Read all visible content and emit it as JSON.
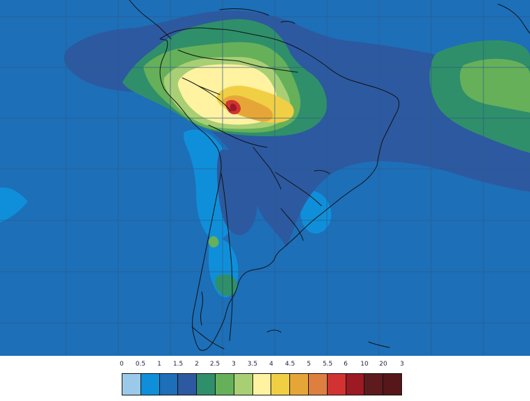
{
  "map": {
    "background_color": "#1d6fb8",
    "colors": {
      "ocean_deep": "#1d6fb8",
      "ocean_light": "#0f8fd9",
      "navy": "#2d59a0",
      "teal": "#2f8f6a",
      "green": "#66b05a",
      "light_green": "#a8cf74",
      "pale_yellow": "#fff2a0",
      "yellow": "#f1cf45",
      "orange": "#e6a637",
      "orange_red": "#dc7f3f",
      "red": "#d13232",
      "dark_red": "#9b1a24",
      "coast": "#111111",
      "grid": "#2c5a8a"
    }
  },
  "legend": {
    "labels": [
      "0",
      "0.5",
      "1",
      "1.5",
      "2",
      "2.5",
      "3",
      "3.5",
      "4",
      "4.5",
      "5",
      "5.5",
      "6",
      "10",
      "20",
      "3"
    ],
    "colors": [
      "#9bc9ea",
      "#0f8fd9",
      "#1d6fb8",
      "#2d59a0",
      "#2f8f6a",
      "#66b05a",
      "#a8cf74",
      "#fff2a0",
      "#f1cf45",
      "#e6a637",
      "#dc7f3f",
      "#d13232",
      "#9b1a24",
      "#5d1b1d",
      "#56161a"
    ]
  }
}
